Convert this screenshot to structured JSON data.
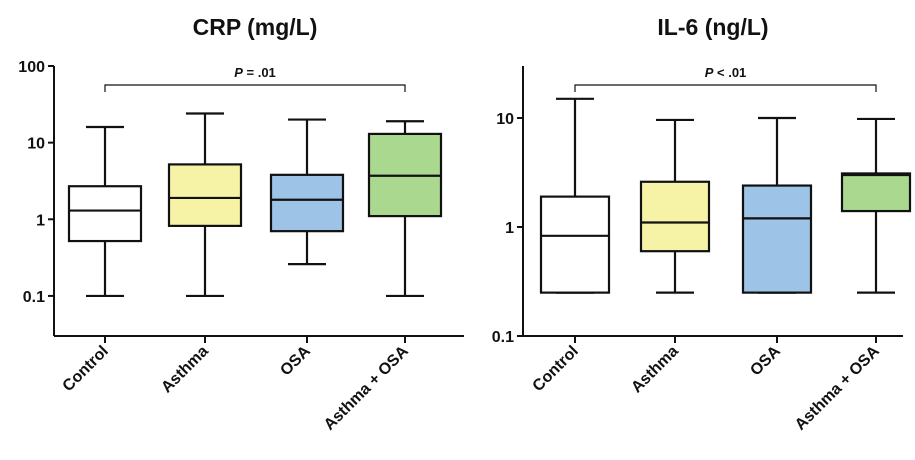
{
  "chart_data": [
    {
      "type": "box",
      "title": "CRP (mg/L)",
      "yscale": "log",
      "ylim": [
        0.03,
        100
      ],
      "yticks": [
        0.1,
        1,
        10,
        100
      ],
      "ytick_labels": [
        "0.1",
        "1",
        "10",
        "100"
      ],
      "categories": [
        "Control",
        "Asthma",
        "OSA",
        "Asthma + OSA"
      ],
      "boxes": [
        {
          "min": 0.1,
          "q1": 0.52,
          "median": 1.3,
          "q3": 2.7,
          "max": 16
        },
        {
          "min": 0.1,
          "q1": 0.82,
          "median": 1.9,
          "q3": 5.2,
          "max": 24
        },
        {
          "min": 0.26,
          "q1": 0.7,
          "median": 1.8,
          "q3": 3.8,
          "max": 20
        },
        {
          "min": 0.1,
          "q1": 1.1,
          "median": 3.7,
          "q3": 13,
          "max": 19
        }
      ],
      "colors": [
        "#ffffff",
        "#f6f2a6",
        "#9dc3e6",
        "#a9d88e"
      ],
      "annotation": {
        "prefix": "P",
        "text": " = .01",
        "from": 0,
        "to": 3
      }
    },
    {
      "type": "box",
      "title": "IL-6 (ng/L)",
      "yscale": "log",
      "ylim": [
        0.1,
        30
      ],
      "yticks": [
        0.1,
        1,
        10
      ],
      "ytick_labels": [
        "0.1",
        "1",
        "10"
      ],
      "categories": [
        "Control",
        "Asthma",
        "OSA",
        "Asthma + OSA"
      ],
      "boxes": [
        {
          "min": 0.25,
          "q1": 0.25,
          "median": 0.83,
          "q3": 1.9,
          "max": 15
        },
        {
          "min": 0.25,
          "q1": 0.6,
          "median": 1.1,
          "q3": 2.6,
          "max": 9.6
        },
        {
          "min": 0.25,
          "q1": 0.25,
          "median": 1.2,
          "q3": 2.4,
          "max": 10
        },
        {
          "min": 0.25,
          "q1": 1.4,
          "median": 3.0,
          "q3": 3.1,
          "max": 9.8
        }
      ],
      "colors": [
        "#ffffff",
        "#f6f2a6",
        "#9dc3e6",
        "#a9d88e"
      ],
      "annotation": {
        "prefix": "P",
        "text": " < .01",
        "from": 0,
        "to": 3
      }
    }
  ]
}
